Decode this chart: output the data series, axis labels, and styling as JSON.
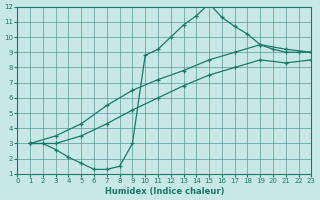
{
  "xlabel": "Humidex (Indice chaleur)",
  "bg_color": "#c8e8e8",
  "grid_color": "#5a9a9a",
  "line_color": "#1a7a6a",
  "xlim": [
    0,
    23
  ],
  "ylim": [
    1,
    12
  ],
  "xticks": [
    0,
    1,
    2,
    3,
    4,
    5,
    6,
    7,
    8,
    9,
    10,
    11,
    12,
    13,
    14,
    15,
    16,
    17,
    18,
    19,
    20,
    21,
    22,
    23
  ],
  "yticks": [
    1,
    2,
    3,
    4,
    5,
    6,
    7,
    8,
    9,
    10,
    11,
    12
  ],
  "line1_x": [
    1,
    2,
    3,
    4,
    5,
    6,
    7,
    8,
    9,
    10,
    11,
    12,
    13,
    14,
    15,
    16,
    17,
    18,
    19,
    20,
    21,
    22,
    23
  ],
  "line1_y": [
    3.0,
    3.0,
    2.6,
    2.1,
    1.7,
    1.3,
    1.3,
    1.5,
    3.0,
    8.8,
    9.2,
    10.0,
    10.8,
    11.4,
    12.2,
    11.3,
    10.7,
    10.2,
    9.5,
    9.2,
    9.0,
    9.0,
    9.0
  ],
  "line2_x": [
    1,
    3,
    5,
    7,
    9,
    11,
    13,
    15,
    17,
    19,
    21,
    23
  ],
  "line2_y": [
    3.0,
    3.5,
    4.3,
    5.5,
    6.5,
    7.2,
    7.8,
    8.5,
    9.0,
    9.5,
    9.2,
    9.0
  ],
  "line3_x": [
    1,
    3,
    5,
    7,
    9,
    11,
    13,
    15,
    17,
    19,
    21,
    23
  ],
  "line3_y": [
    3.0,
    3.0,
    3.5,
    4.3,
    5.2,
    6.0,
    6.8,
    7.5,
    8.0,
    8.5,
    8.3,
    8.5
  ]
}
